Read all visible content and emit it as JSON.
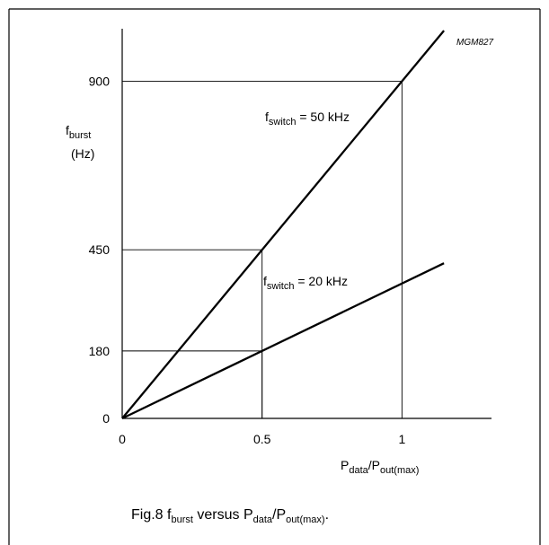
{
  "figure_code": "MGM827",
  "y_axis_label": {
    "main": "f",
    "sub": "burst",
    "unit": "(Hz)"
  },
  "x_axis_label": {
    "p1": "P",
    "s1": "data",
    "slash": "/P",
    "s2": "out(max)"
  },
  "caption": {
    "prefix": "Fig.8  f",
    "sub1": "burst",
    "mid": " versus P",
    "sub2": "data",
    "slash": "/P",
    "sub3": "out(max)",
    "end": "."
  },
  "chart_data": {
    "type": "line",
    "xlim": [
      0,
      1.32
    ],
    "ylim": [
      0,
      1040
    ],
    "x_ticks": [
      {
        "value": 0,
        "label": "0"
      },
      {
        "value": 0.5,
        "label": "0.5"
      },
      {
        "value": 1,
        "label": "1"
      }
    ],
    "y_ticks": [
      {
        "value": 0,
        "label": "0"
      },
      {
        "value": 180,
        "label": "180"
      },
      {
        "value": 450,
        "label": "450"
      },
      {
        "value": 900,
        "label": "900"
      }
    ],
    "series": [
      {
        "id": "s50",
        "label": {
          "main": "f",
          "sub": "switch",
          "rest": " = 50 kHz"
        },
        "x": [
          0,
          1.15
        ],
        "y": [
          0,
          1035
        ]
      },
      {
        "id": "s20",
        "label": {
          "main": "f",
          "sub": "switch",
          "rest": " = 20 kHz"
        },
        "x": [
          0,
          1.15
        ],
        "y": [
          0,
          414
        ]
      }
    ],
    "guides": [
      {
        "x": 0.5,
        "y": 450
      },
      {
        "x": 0.5,
        "y": 180
      },
      {
        "x": 1,
        "y": 900
      }
    ]
  }
}
